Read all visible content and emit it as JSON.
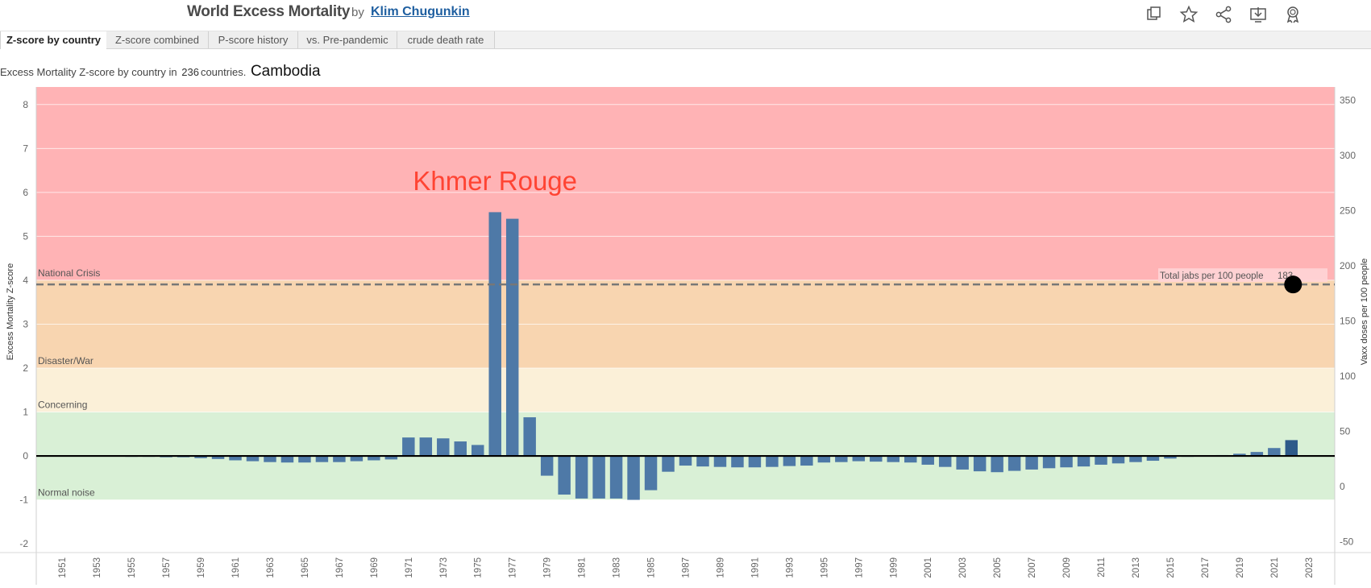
{
  "header": {
    "title": "World Excess Mortality",
    "by": "by",
    "author": "Klim Chugunkin",
    "icons": [
      "duplicate-icon",
      "star-icon",
      "share-icon",
      "download-icon",
      "award-icon"
    ]
  },
  "tabs": [
    {
      "label": "Z-score by country",
      "active": true
    },
    {
      "label": "Z-score combined",
      "active": false
    },
    {
      "label": "P-score history",
      "active": false
    },
    {
      "label": "vs. Pre-pandemic",
      "active": false
    },
    {
      "label": "crude death rate",
      "active": false
    }
  ],
  "subtitle": {
    "prefix": "Excess Mortality Z-score by country in",
    "count": "236",
    "suffix": "countries.",
    "country": "Cambodia"
  },
  "colors": {
    "bar": "#4e79a7",
    "bar_last": "#2e5a8a",
    "crisis_band": "#ffb3b5",
    "war_band": "#f8d5b0",
    "concern_band": "#fbf0d8",
    "normal_band": "#d9f0d6",
    "annotation": "#ff4433"
  },
  "chart_data": {
    "type": "bar",
    "ylabel": "Excess Mortality Z-score",
    "y2label": "Vaxx doses per 100 people",
    "ylim": [
      -2.2,
      8.4
    ],
    "y2lim": [
      -60,
      362
    ],
    "yticks": [
      8,
      7,
      6,
      5,
      4,
      3,
      2,
      1,
      0,
      -1,
      -2
    ],
    "y2ticks": [
      350,
      300,
      250,
      200,
      150,
      100,
      50,
      0,
      -50
    ],
    "xticks": [
      "1951",
      "1953",
      "1955",
      "1957",
      "1959",
      "1961",
      "1963",
      "1965",
      "1967",
      "1969",
      "1971",
      "1973",
      "1975",
      "1977",
      "1979",
      "1981",
      "1983",
      "1985",
      "1987",
      "1989",
      "1991",
      "1993",
      "1995",
      "1997",
      "1999",
      "2001",
      "2003",
      "2005",
      "2007",
      "2009",
      "2011",
      "2013",
      "2015",
      "2017",
      "2019",
      "2021",
      "2023"
    ],
    "grid": true,
    "bands": [
      {
        "label": "National Crisis",
        "from": 4,
        "to": 8.4,
        "color": "#ffb3b5"
      },
      {
        "label": "Disaster/War",
        "from": 2,
        "to": 4,
        "color": "#f8d5b0"
      },
      {
        "label": "Concerning",
        "from": 1,
        "to": 2,
        "color": "#fbf0d8"
      },
      {
        "label": "Normal noise",
        "from": -1,
        "to": 1,
        "color": "#d9f0d6"
      }
    ],
    "annotation": "Khmer Rouge",
    "reference_line": {
      "label": "Total jabs per 100 people",
      "value": "183",
      "y2": 183,
      "x": 2022
    },
    "x": [
      1951,
      1952,
      1953,
      1954,
      1955,
      1956,
      1957,
      1958,
      1959,
      1960,
      1961,
      1962,
      1963,
      1964,
      1965,
      1966,
      1967,
      1968,
      1969,
      1970,
      1971,
      1972,
      1973,
      1974,
      1975,
      1976,
      1977,
      1978,
      1979,
      1980,
      1981,
      1982,
      1983,
      1984,
      1985,
      1986,
      1987,
      1988,
      1989,
      1990,
      1991,
      1992,
      1993,
      1994,
      1995,
      1996,
      1997,
      1998,
      1999,
      2000,
      2001,
      2002,
      2003,
      2004,
      2005,
      2006,
      2007,
      2008,
      2009,
      2010,
      2011,
      2012,
      2013,
      2014,
      2015,
      2016,
      2017,
      2018,
      2019,
      2020,
      2021,
      2022
    ],
    "values": [
      0,
      0,
      -0.01,
      -0.01,
      -0.02,
      -0.02,
      -0.03,
      -0.03,
      -0.05,
      -0.07,
      -0.1,
      -0.12,
      -0.14,
      -0.15,
      -0.15,
      -0.14,
      -0.14,
      -0.12,
      -0.1,
      -0.08,
      0.42,
      0.42,
      0.4,
      0.33,
      0.25,
      5.55,
      5.4,
      0.88,
      -0.45,
      -0.88,
      -0.97,
      -0.97,
      -0.97,
      -1.0,
      -0.78,
      -0.36,
      -0.22,
      -0.24,
      -0.25,
      -0.26,
      -0.26,
      -0.25,
      -0.23,
      -0.22,
      -0.15,
      -0.14,
      -0.12,
      -0.13,
      -0.14,
      -0.15,
      -0.2,
      -0.25,
      -0.31,
      -0.35,
      -0.37,
      -0.34,
      -0.31,
      -0.28,
      -0.26,
      -0.24,
      -0.2,
      -0.17,
      -0.14,
      -0.11,
      -0.06,
      -0.02,
      0.01,
      0.02,
      0.05,
      0.09,
      0.18,
      0.36
    ]
  }
}
